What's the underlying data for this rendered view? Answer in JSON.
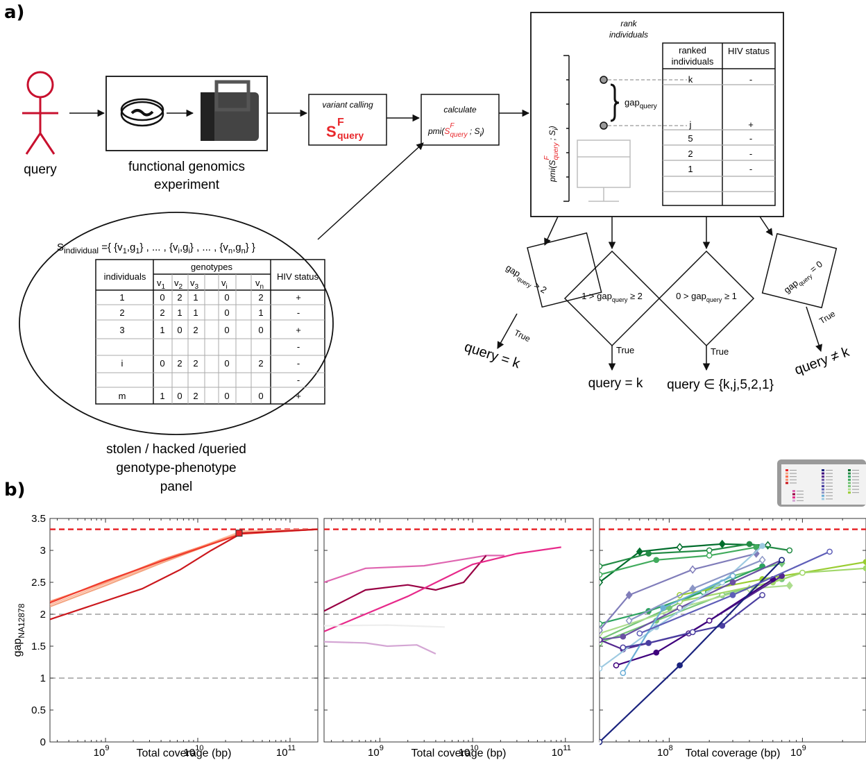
{
  "panel_a": {
    "label": "a)",
    "query_label": "query",
    "experiment_label_line1": "functional genomics",
    "experiment_label_line2": "experiment",
    "variant_calling": {
      "title": "variant calling",
      "symbol": "S",
      "superscript": "F",
      "subscript": "query"
    },
    "calculate": {
      "title": "calculate",
      "formula_prefix": "pmi(",
      "formula_s": "S",
      "formula_sup": "F",
      "formula_sub": "query",
      "formula_suffix": " ; S",
      "formula_i": "i",
      "formula_end": ")"
    },
    "rank": {
      "title_line1": "rank",
      "title_line2": "individuals",
      "y_axis_label": "pmi(S",
      "y_axis_sup": "F",
      "y_axis_sub": "query",
      "y_axis_rest": " ; S",
      "y_axis_i": "i",
      "y_axis_end": ")",
      "gap_label": "gap",
      "gap_sub": "query",
      "col1_line1": "ranked",
      "col1_line2": "individuals",
      "col2": "HIV status",
      "rows": [
        {
          "id": "k",
          "status": "-"
        },
        {
          "id": "j",
          "status": "+"
        },
        {
          "id": "5",
          "status": "-"
        },
        {
          "id": "2",
          "status": "-"
        },
        {
          "id": "1",
          "status": "-"
        }
      ]
    },
    "panel_set": {
      "s_main": "S",
      "s_sub": "individual",
      "s_rest": " ={ {v",
      "title_pieces": [
        "1",
        ",g",
        "1",
        "} , ... , {v",
        "i",
        ",g",
        "i",
        "} , ... , {v",
        "n",
        ",g",
        "n",
        "} }"
      ],
      "header_individuals": "individuals",
      "header_genotypes": "genotypes",
      "header_hiv": "HIV status",
      "variant_headers": [
        [
          "v",
          "1"
        ],
        [
          "v",
          "2"
        ],
        [
          "v",
          "3"
        ],
        [
          "v",
          "i"
        ],
        [
          "v",
          "n"
        ]
      ],
      "rows": [
        {
          "id": "1",
          "g": [
            "0",
            "2",
            "1",
            "0",
            "2"
          ],
          "status": "+"
        },
        {
          "id": "2",
          "g": [
            "2",
            "1",
            "1",
            "0",
            "1"
          ],
          "status": "-"
        },
        {
          "id": "3",
          "g": [
            "1",
            "0",
            "2",
            "0",
            "0"
          ],
          "status": "+"
        },
        {
          "id": "",
          "g": [
            "",
            "",
            "",
            "",
            ""
          ],
          "status": "-"
        },
        {
          "id": "i",
          "g": [
            "0",
            "2",
            "2",
            "0",
            "2"
          ],
          "status": "-"
        },
        {
          "id": "",
          "g": [
            "",
            "",
            "",
            "",
            ""
          ],
          "status": "-"
        },
        {
          "id": "m",
          "g": [
            "1",
            "0",
            "2",
            "0",
            "0"
          ],
          "status": "+"
        }
      ],
      "caption_line1": "stolen / hacked /queried",
      "caption_line2": "genotype-phenotype",
      "caption_line3": "panel"
    },
    "decisions": [
      {
        "gap": "gap",
        "sub": "query",
        "cond": " > 2",
        "true_label": "True",
        "outcome": "query = k"
      },
      {
        "gap": "gap",
        "sub": "query",
        "prefix": "1 > ",
        "cond": " ≥ 2",
        "true_label": "True",
        "outcome": "query = k"
      },
      {
        "gap": "gap",
        "sub": "query",
        "prefix": "0 > ",
        "cond": " ≥ 1",
        "true_label": "True",
        "outcome": "query ∈ {k,j,5,2,1}"
      },
      {
        "gap": "gap",
        "sub": "query",
        "cond": " = 0",
        "true_label": "True",
        "outcome": "query ≠ k"
      }
    ]
  },
  "panel_b": {
    "label": "b)"
  },
  "colors": {
    "red_accent": "#e8262a",
    "red_dark": "#c8102e",
    "dashed_gray": "#8a8a8a",
    "box_gray": "#bdbdbd"
  },
  "chart_data": [
    {
      "type": "line",
      "xscale": "log",
      "xlabel": "Total coverage (bp)",
      "ylabel": "gap",
      "ylabel_sub": "NA12878",
      "xlim": [
        250000000,
        200000000000
      ],
      "ylim": [
        0,
        3.5
      ],
      "yticks": [
        "0",
        "0.5",
        "1",
        "1.5",
        "2",
        "2.5",
        "3",
        "3.5"
      ],
      "xticks": [
        {
          "value": 1000000000,
          "base": "10",
          "exp": "9"
        },
        {
          "value": 10000000000,
          "base": "10",
          "exp": "10"
        },
        {
          "value": 100000000000,
          "base": "10",
          "exp": "11"
        }
      ],
      "reference_lines": [
        {
          "y": 3.33,
          "color": "#e8262a"
        },
        {
          "y": 2,
          "color": "#8a8a8a"
        },
        {
          "y": 1,
          "color": "#8a8a8a"
        }
      ],
      "series": [
        {
          "color": "#f4a582",
          "x": [
            250000000,
            1000000000,
            4000000000,
            30000000000,
            200000000000
          ],
          "y": [
            2.12,
            2.45,
            2.8,
            3.28,
            3.33
          ]
        },
        {
          "color": "#fcbba1",
          "x": [
            250000000,
            1000000000,
            4000000000,
            30000000000,
            200000000000
          ],
          "y": [
            2.15,
            2.48,
            2.82,
            3.3,
            3.33
          ]
        },
        {
          "color": "#fc9272",
          "x": [
            250000000,
            1000000000,
            4000000000,
            30000000000,
            200000000000
          ],
          "y": [
            2.2,
            2.5,
            2.85,
            3.27,
            3.33
          ]
        },
        {
          "color": "#ef3b2c",
          "x": [
            250000000,
            1000000000,
            4000000000,
            30000000000,
            200000000000
          ],
          "y": [
            2.18,
            2.52,
            2.83,
            3.26,
            3.33
          ]
        },
        {
          "color": "#cb181d",
          "x": [
            250000000,
            2500000000,
            6500000000,
            14000000000,
            30000000000,
            200000000000
          ],
          "y": [
            1.92,
            2.4,
            2.7,
            3.0,
            3.27,
            3.33
          ],
          "marker_last": {
            "x": 28000000000,
            "y": 3.27
          }
        }
      ]
    },
    {
      "type": "line",
      "xscale": "log",
      "xlabel": "Total coverage (bp)",
      "xlim": [
        250000000,
        200000000000
      ],
      "ylim": [
        0,
        3.5
      ],
      "xticks": [
        {
          "value": 1000000000,
          "base": "10",
          "exp": "9"
        },
        {
          "value": 10000000000,
          "base": "10",
          "exp": "10"
        },
        {
          "value": 100000000000,
          "base": "10",
          "exp": "11"
        }
      ],
      "reference_lines": [
        {
          "y": 3.33,
          "color": "#e8262a"
        },
        {
          "y": 2,
          "color": "#8a8a8a"
        },
        {
          "y": 1,
          "color": "#8a8a8a"
        }
      ],
      "series": [
        {
          "color": "#df65b0",
          "x": [
            250000000,
            700000000,
            3000000000,
            14000000000,
            22000000000
          ],
          "y": [
            2.5,
            2.72,
            2.76,
            2.92,
            2.92
          ]
        },
        {
          "color": "#980043",
          "x": [
            250000000,
            700000000,
            2000000000,
            4000000000,
            8000000000,
            14000000000
          ],
          "y": [
            2.05,
            2.38,
            2.46,
            2.38,
            2.5,
            2.92
          ]
        },
        {
          "color": "#e7298a",
          "x": [
            250000000,
            2000000000,
            10000000000,
            30000000000,
            90000000000
          ],
          "y": [
            1.73,
            2.28,
            2.78,
            2.95,
            3.05
          ]
        },
        {
          "color": "#eeeeee",
          "x": [
            250000000,
            1200000000,
            5000000000
          ],
          "y": [
            1.82,
            1.83,
            1.8
          ]
        },
        {
          "color": "#d4a6d4",
          "x": [
            250000000,
            700000000,
            1200000000,
            2500000000,
            4000000000
          ],
          "y": [
            1.57,
            1.55,
            1.5,
            1.52,
            1.38
          ]
        }
      ]
    },
    {
      "type": "line",
      "xscale": "log",
      "xlabel": "Total coverage (bp)",
      "xlim": [
        30000000,
        3000000000
      ],
      "ylim": [
        0,
        3.5
      ],
      "xticks": [
        {
          "value": 100000000,
          "base": "10",
          "exp": "8"
        },
        {
          "value": 1000000000,
          "base": "10",
          "exp": "9"
        }
      ],
      "reference_lines": [
        {
          "y": 3.33,
          "color": "#e8262a"
        },
        {
          "y": 2,
          "color": "#8a8a8a"
        },
        {
          "y": 1,
          "color": "#8a8a8a"
        }
      ],
      "series": [
        {
          "color": "#006d2c",
          "marker": "diamond",
          "x": [
            30000000,
            60000000,
            120000000,
            250000000,
            550000000
          ],
          "y": [
            2.5,
            2.98,
            3.05,
            3.1,
            3.08
          ]
        },
        {
          "color": "#238b45",
          "marker": "circle",
          "x": [
            30000000,
            70000000,
            200000000,
            400000000,
            800000000
          ],
          "y": [
            2.75,
            2.95,
            3.0,
            3.1,
            3.0
          ]
        },
        {
          "color": "#41ab5d",
          "marker": "circle",
          "x": [
            30000000,
            80000000,
            200000000,
            450000000
          ],
          "y": [
            2.62,
            2.85,
            2.92,
            3.05
          ]
        },
        {
          "color": "#74c476",
          "marker": "diamond",
          "x": [
            30000000,
            100000000,
            300000000,
            700000000
          ],
          "y": [
            1.6,
            2.1,
            2.6,
            2.8
          ]
        },
        {
          "color": "#2ca25f",
          "marker": "circle",
          "x": [
            30000000,
            70000000,
            180000000,
            500000000
          ],
          "y": [
            1.85,
            2.05,
            2.35,
            2.75
          ]
        },
        {
          "color": "#78c679",
          "marker": "circle",
          "x": [
            30000000,
            80000000,
            250000000,
            700000000
          ],
          "y": [
            1.55,
            1.9,
            2.3,
            2.55
          ]
        },
        {
          "color": "#addd8e",
          "marker": "diamond",
          "x": [
            30000000,
            120000000,
            400000000,
            800000000
          ],
          "y": [
            1.7,
            2.1,
            2.4,
            2.45
          ]
        },
        {
          "color": "#9acd32",
          "marker": "circle",
          "x": [
            120000000,
            500000000,
            1000000000,
            3000000000
          ],
          "y": [
            2.3,
            2.55,
            2.65,
            2.82
          ]
        },
        {
          "color": "#a1d76a",
          "marker": "circle",
          "x": [
            120000000,
            600000000,
            1000000000,
            3000000000
          ],
          "y": [
            2.2,
            2.5,
            2.65,
            2.72
          ]
        },
        {
          "color": "#6a51a3",
          "marker": "circle",
          "x": [
            30000000,
            45000000,
            120000000,
            300000000,
            700000000
          ],
          "y": [
            1.6,
            1.65,
            2.1,
            2.5,
            2.85
          ]
        },
        {
          "color": "#807dba",
          "marker": "diamond",
          "x": [
            30000000,
            50000000,
            150000000,
            450000000
          ],
          "y": [
            1.75,
            2.3,
            2.7,
            2.95
          ]
        },
        {
          "color": "#54278f",
          "marker": "circle",
          "x": [
            30000000,
            45000000,
            140000000,
            700000000
          ],
          "y": [
            1.6,
            1.45,
            1.7,
            2.6
          ]
        },
        {
          "color": "#3f007d",
          "marker": "circle",
          "x": [
            40000000,
            80000000,
            200000000,
            600000000
          ],
          "y": [
            1.2,
            1.4,
            1.9,
            2.55
          ]
        },
        {
          "color": "#9ecae1",
          "marker": "circle",
          "x": [
            30000000,
            80000000,
            250000000,
            500000000
          ],
          "y": [
            1.15,
            1.8,
            2.5,
            3.07
          ]
        },
        {
          "color": "#6baed6",
          "marker": "circle",
          "x": [
            45000000,
            90000000,
            300000000
          ],
          "y": [
            1.08,
            2.1,
            2.6
          ]
        },
        {
          "color": "#4a3ea0",
          "marker": "circle",
          "x": [
            45000000,
            70000000,
            150000000,
            250000000,
            500000000
          ],
          "y": [
            1.48,
            1.55,
            1.72,
            1.82,
            2.3
          ]
        },
        {
          "color": "#1a237e",
          "marker": "circle",
          "x": [
            30000000,
            120000000,
            700000000
          ],
          "y": [
            0,
            1.2,
            2.85
          ]
        },
        {
          "color": "#5e5eb8",
          "marker": "circle",
          "x": [
            60000000,
            300000000,
            1600000000
          ],
          "y": [
            1.7,
            2.3,
            2.98
          ]
        },
        {
          "color": "#8c96c6",
          "marker": "diamond",
          "x": [
            50000000,
            150000000,
            500000000
          ],
          "y": [
            1.9,
            2.4,
            2.85
          ]
        }
      ]
    }
  ]
}
